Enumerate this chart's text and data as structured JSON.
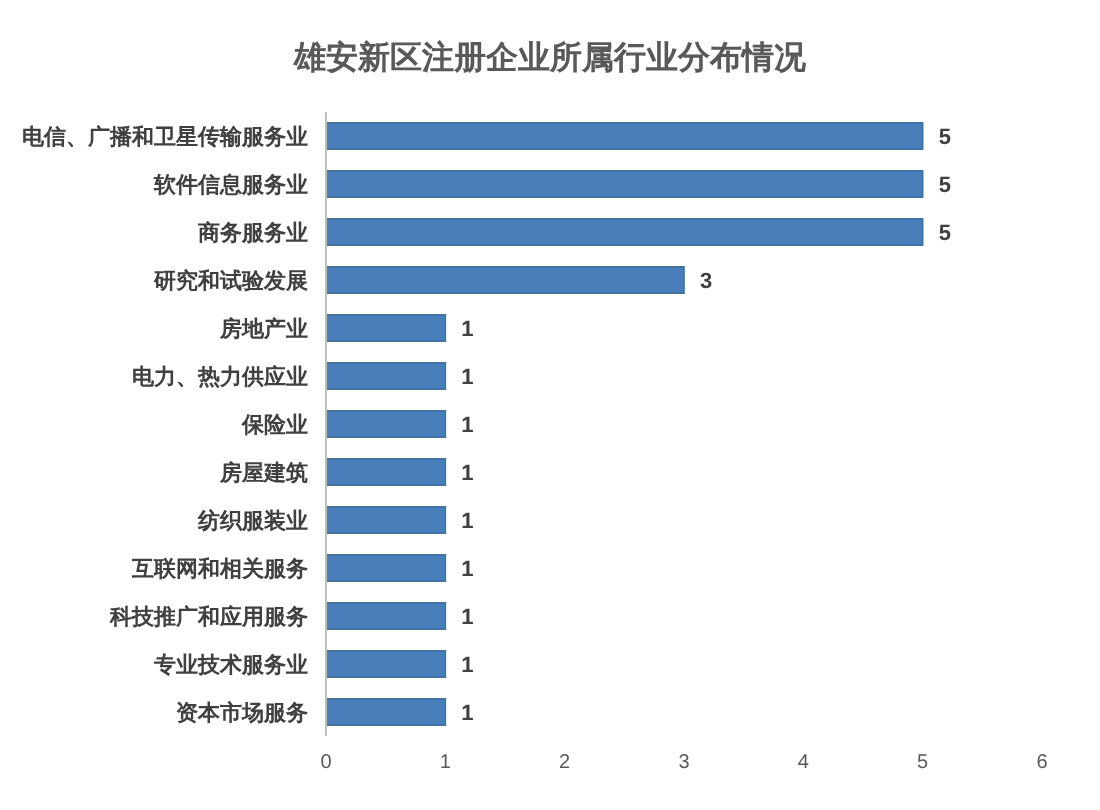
{
  "chart_data": {
    "type": "bar",
    "orientation": "horizontal",
    "title": "雄安新区注册企业所属行业分布情况",
    "categories": [
      "电信、广播和卫星传输服务业",
      "软件信息服务业",
      "商务服务业",
      "研究和试验发展",
      "房地产业",
      "电力、热力供应业",
      "保险业",
      "房屋建筑",
      "纺织服装业",
      "互联网和相关服务",
      "科技推广和应用服务",
      "专业技术服务业",
      "资本市场服务"
    ],
    "values": [
      5,
      5,
      5,
      3,
      1,
      1,
      1,
      1,
      1,
      1,
      1,
      1,
      1
    ],
    "color": "#4a7ebb",
    "xlim": [
      0,
      6
    ],
    "xticks": [
      0,
      1,
      2,
      3,
      4,
      5,
      6
    ],
    "data_labels": true
  }
}
